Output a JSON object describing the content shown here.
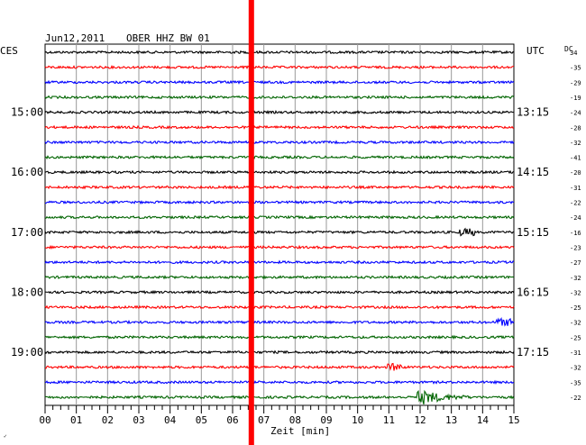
{
  "header": {
    "date": "Jun12,2011",
    "station": "OBER HHZ BW 01",
    "left_tz": "CES",
    "right_tz": "UTC",
    "dc_label": "DC"
  },
  "chart_data": {
    "type": "line",
    "title": "Jun12,2011   OBER HHZ BW 01",
    "xlabel": "Zeit [min]",
    "xlim": [
      0,
      15
    ],
    "x_ticks": [
      "00",
      "01",
      "02",
      "03",
      "04",
      "05",
      "06",
      "07",
      "08",
      "09",
      "10",
      "11",
      "12",
      "13",
      "14",
      "15"
    ],
    "trace_colors": [
      "#000000",
      "#ff0000",
      "#0000ff",
      "#006400"
    ],
    "traces": 24,
    "left_hour_labels": [
      {
        "trace": 4,
        "label": "15:00"
      },
      {
        "trace": 8,
        "label": "16:00"
      },
      {
        "trace": 12,
        "label": "17:00"
      },
      {
        "trace": 16,
        "label": "18:00"
      },
      {
        "trace": 20,
        "label": "19:00"
      }
    ],
    "right_hour_labels": [
      {
        "trace": 4,
        "label": "13:15"
      },
      {
        "trace": 8,
        "label": "14:15"
      },
      {
        "trace": 12,
        "label": "15:15"
      },
      {
        "trace": 16,
        "label": "16:15"
      },
      {
        "trace": 20,
        "label": "17:15"
      }
    ],
    "dc_offsets": [
      34,
      -35,
      -29,
      -19,
      -24,
      -28,
      -32,
      -41,
      -20,
      -31,
      -22,
      -24,
      -16,
      -23,
      -27,
      -32,
      -32,
      -25,
      -32,
      -25,
      -31,
      -32,
      -35,
      -22
    ],
    "marker_line": {
      "x_min": 6.6,
      "color": "#ff0000"
    },
    "events": [
      {
        "trace": 12,
        "x_min": 13.5,
        "amplitude": "small"
      },
      {
        "trace": 18,
        "x_min": 14.7,
        "amplitude": "small"
      },
      {
        "trace": 21,
        "x_min": 11.2,
        "amplitude": "small"
      },
      {
        "trace": 23,
        "x_min": 12.0,
        "amplitude": "large"
      }
    ]
  },
  "footer_mark": "✓"
}
